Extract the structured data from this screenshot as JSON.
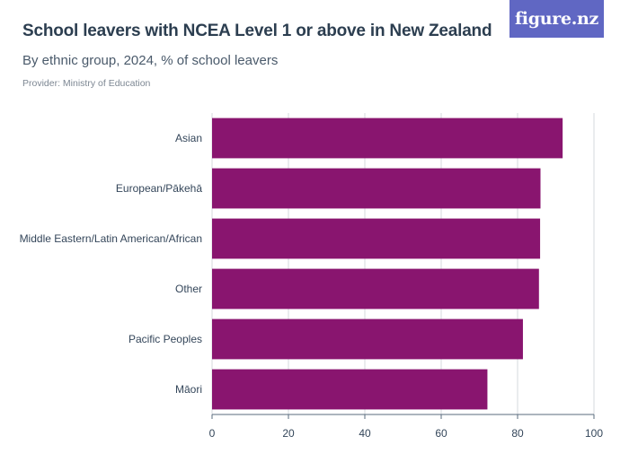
{
  "header": {
    "title": "School leavers with NCEA Level 1 or above in New Zealand",
    "subtitle": "By ethnic group, 2024, % of school leavers",
    "provider": "Provider: Ministry of Education"
  },
  "logo": {
    "text": "figure.nz",
    "color": "#6067c3"
  },
  "chart_data": {
    "type": "bar",
    "orientation": "horizontal",
    "categories": [
      "Asian",
      "European/Pākehā",
      "Middle Eastern/Latin American/African",
      "Other",
      "Pacific Peoples",
      "Māori"
    ],
    "values": [
      91.8,
      86.0,
      85.9,
      85.6,
      81.4,
      72.1
    ],
    "title": "School leavers with NCEA Level 1 or above in New Zealand",
    "subtitle": "By ethnic group, 2024, % of school leavers",
    "xlim": [
      0,
      100
    ],
    "xticks": [
      0,
      20,
      40,
      60,
      80,
      100
    ],
    "grid": true,
    "legend": "none",
    "bar_color": "#89156f",
    "grid_color": "#d6d9de",
    "axis_color": "#5a6b7d"
  }
}
